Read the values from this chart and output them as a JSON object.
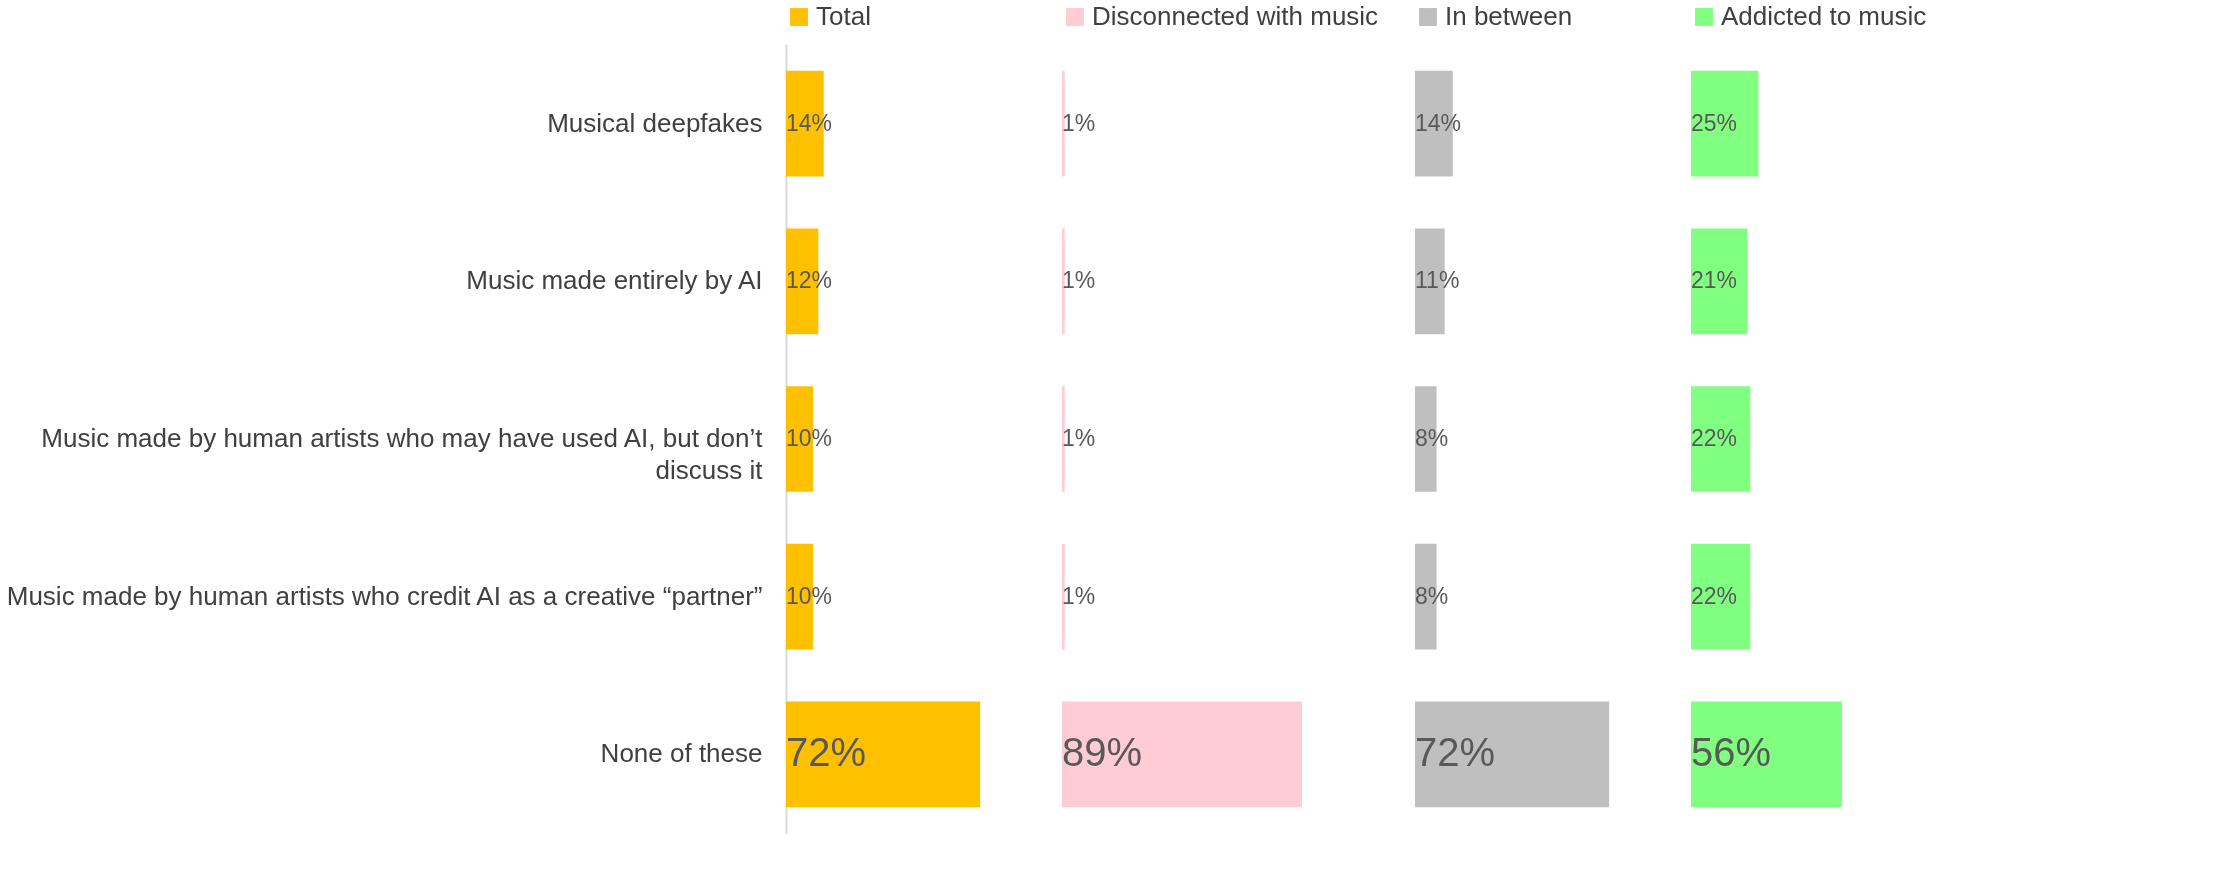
{
  "chart_data": [
    {
      "type": "bar",
      "orientation": "horizontal",
      "legend": "top",
      "tick_labels": "y",
      "categories": [
        "Musical deepfakes",
        "Music made entirely by AI",
        "Music made by human artists who may have used AI, but don’t discuss it",
        "Music made by human artists who credit AI as a creative “partner”",
        "None of these"
      ],
      "series": [
        {
          "name": "Total",
          "color": "#ffc000",
          "values": [
            14,
            12,
            10,
            10,
            72
          ],
          "value_labels": [
            "14%",
            "12%",
            "10%",
            "10%",
            "72%"
          ]
        }
      ]
    },
    {
      "type": "bar",
      "orientation": "horizontal",
      "legend": "top",
      "tick_labels": false,
      "categories": [
        null,
        null,
        null,
        null,
        null
      ],
      "series": [
        {
          "name": "Disconnected with music",
          "color": "#ffccd5",
          "values": [
            1,
            1,
            1,
            1,
            89
          ],
          "value_labels": [
            "1%",
            "1%",
            "1%",
            "1%",
            "89%"
          ]
        }
      ]
    },
    {
      "type": "bar",
      "orientation": "horizontal",
      "legend": "top",
      "tick_labels": false,
      "categories": [
        null,
        null,
        null,
        null,
        null
      ],
      "series": [
        {
          "name": "In between",
          "color": "#bfbfbf",
          "values": [
            14,
            11,
            8,
            8,
            72
          ],
          "value_labels": [
            "14%",
            "11%",
            "8%",
            "8%",
            "72%"
          ]
        }
      ]
    },
    {
      "type": "bar",
      "orientation": "horizontal",
      "legend": "top",
      "tick_labels": false,
      "categories": [
        null,
        null,
        null,
        null,
        null
      ],
      "series": [
        {
          "name": "Addicted to music",
          "color": "#80ff80",
          "values": [
            25,
            21,
            22,
            22,
            56
          ],
          "value_labels": [
            "25%",
            "21%",
            "22%",
            "22%",
            "56%"
          ]
        }
      ]
    }
  ]
}
